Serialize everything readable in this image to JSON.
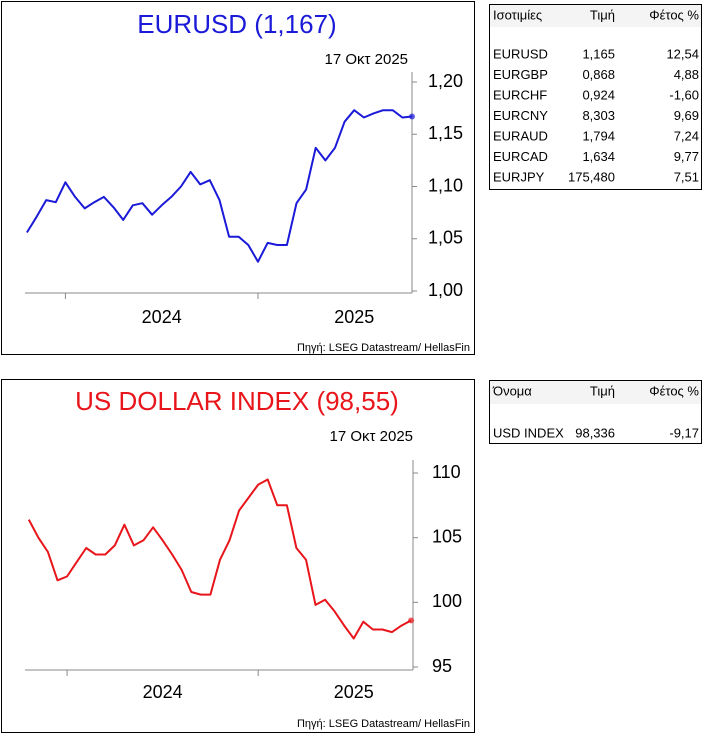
{
  "chart_data": [
    {
      "type": "line",
      "title": "EURUSD (1,167)",
      "subtitle": "17 Οκτ 2025",
      "source": "Πηγή: LSEG Datastream/ HellasFin",
      "color": "#1a1ad8",
      "x": [
        2023.8,
        2023.85,
        2023.9,
        2023.95,
        2024.0,
        2024.05,
        2024.1,
        2024.15,
        2024.2,
        2024.25,
        2024.3,
        2024.35,
        2024.4,
        2024.45,
        2024.5,
        2024.55,
        2024.6,
        2024.65,
        2024.7,
        2024.75,
        2024.8,
        2024.85,
        2024.9,
        2024.95,
        2025.0,
        2025.05,
        2025.1,
        2025.15,
        2025.2,
        2025.25,
        2025.3,
        2025.35,
        2025.4,
        2025.45,
        2025.5,
        2025.55,
        2025.6,
        2025.65,
        2025.7,
        2025.75,
        2025.8
      ],
      "values": [
        1.056,
        1.071,
        1.087,
        1.085,
        1.104,
        1.09,
        1.079,
        1.085,
        1.09,
        1.08,
        1.068,
        1.082,
        1.084,
        1.073,
        1.082,
        1.09,
        1.1,
        1.114,
        1.102,
        1.106,
        1.087,
        1.052,
        1.052,
        1.044,
        1.028,
        1.046,
        1.044,
        1.044,
        1.084,
        1.097,
        1.137,
        1.125,
        1.137,
        1.162,
        1.173,
        1.166,
        1.17,
        1.173,
        1.173,
        1.166,
        1.167
      ],
      "xlim": [
        2023.79,
        2025.8
      ],
      "xticks": [
        2024,
        2025
      ],
      "ylim": [
        1.0,
        1.2
      ],
      "yticks": [
        {
          "value": 1.0,
          "label": "1,00"
        },
        {
          "value": 1.05,
          "label": "1,05"
        },
        {
          "value": 1.1,
          "label": "1,10"
        },
        {
          "value": 1.15,
          "label": "1,15"
        },
        {
          "value": 1.2,
          "label": "1,20"
        }
      ]
    },
    {
      "type": "line",
      "title": "US DOLLAR INDEX (98,55)",
      "subtitle": "17 Οκτ 2025",
      "source": "Πηγή: LSEG Datastream/ HellasFin",
      "color": "#e8151b",
      "x": [
        2023.8,
        2023.85,
        2023.9,
        2023.95,
        2024.0,
        2024.05,
        2024.1,
        2024.15,
        2024.2,
        2024.25,
        2024.3,
        2024.35,
        2024.4,
        2024.45,
        2024.5,
        2024.55,
        2024.6,
        2024.65,
        2024.7,
        2024.75,
        2024.8,
        2024.85,
        2024.9,
        2024.95,
        2025.0,
        2025.05,
        2025.1,
        2025.15,
        2025.2,
        2025.25,
        2025.3,
        2025.35,
        2025.4,
        2025.45,
        2025.5,
        2025.55,
        2025.6,
        2025.65,
        2025.7,
        2025.75,
        2025.8
      ],
      "values": [
        106.4,
        105.0,
        103.9,
        101.7,
        102.0,
        103.1,
        104.2,
        103.7,
        103.7,
        104.4,
        106.0,
        104.4,
        104.8,
        105.8,
        104.8,
        103.7,
        102.5,
        100.8,
        100.6,
        100.6,
        103.3,
        104.8,
        107.1,
        108.1,
        109.1,
        109.5,
        107.5,
        107.5,
        104.2,
        103.3,
        99.8,
        100.2,
        99.3,
        98.2,
        97.2,
        98.5,
        97.9,
        97.9,
        97.7,
        98.2,
        98.6
      ],
      "xlim": [
        2023.78,
        2025.81
      ],
      "xticks": [
        2024,
        2025
      ],
      "ylim": [
        95,
        110
      ],
      "yticks": [
        95,
        100,
        105,
        110
      ]
    }
  ],
  "tables": [
    {
      "columns": [
        "Ισοτιμίες",
        "Τιμή",
        "Φέτος %"
      ],
      "rows": [
        [
          "EURUSD",
          "1,165",
          "12,54"
        ],
        [
          "EURGBP",
          "0,868",
          "4,88"
        ],
        [
          "EURCHF",
          "0,924",
          "-1,60"
        ],
        [
          "EURCNY",
          "8,303",
          "9,69"
        ],
        [
          "EURAUD",
          "1,794",
          "7,24"
        ],
        [
          "EURCAD",
          "1,634",
          "9,77"
        ],
        [
          "EURJPY",
          "175,480",
          "7,51"
        ]
      ]
    },
    {
      "columns": [
        "Όνομα",
        "Τιμή",
        "Φέτος %"
      ],
      "rows": [
        [
          "USD INDEX",
          "98,336",
          "-9,17"
        ]
      ]
    }
  ]
}
